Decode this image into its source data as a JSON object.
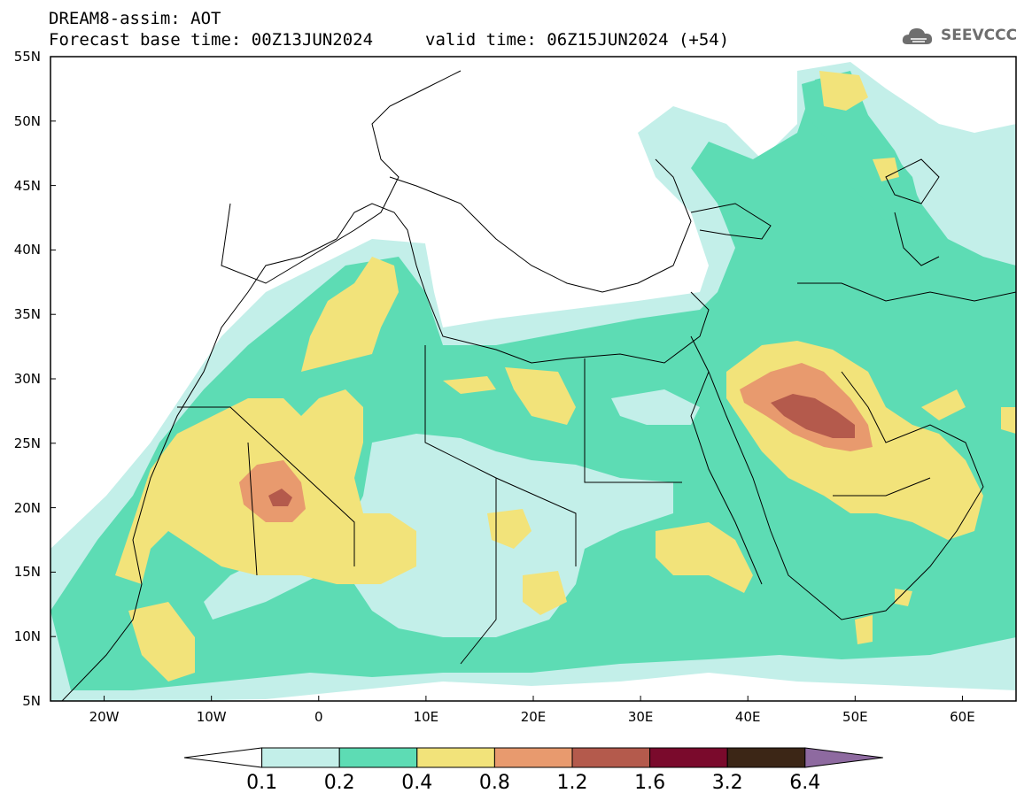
{
  "header": {
    "line1": "DREAM8-assim: AOT",
    "base_time": "Forecast base time: 00Z13JUN2024",
    "valid_time": "valid time: 06Z15JUN2024 (+54)"
  },
  "logo": {
    "text": "SEEVCCC",
    "icon": "cloud-logo-icon"
  },
  "axes": {
    "lat_labels": [
      "55N",
      "50N",
      "45N",
      "40N",
      "35N",
      "30N",
      "25N",
      "20N",
      "15N",
      "10N",
      "5N"
    ],
    "lon_labels": [
      "20W",
      "10W",
      "0",
      "10E",
      "20E",
      "30E",
      "40E",
      "50E",
      "60E"
    ],
    "lat_range": [
      5,
      55
    ],
    "lon_range": [
      -25,
      65
    ]
  },
  "colorbar": {
    "labels": [
      "0.1",
      "0.2",
      "0.4",
      "0.8",
      "1.2",
      "1.6",
      "3.2",
      "6.4"
    ],
    "colors": [
      "#ffffff",
      "#c3efe9",
      "#5ddcb4",
      "#f2e37a",
      "#e89a6e",
      "#b45a4c",
      "#7a0a2c",
      "#3c2616",
      "#8e6aa0"
    ]
  }
}
